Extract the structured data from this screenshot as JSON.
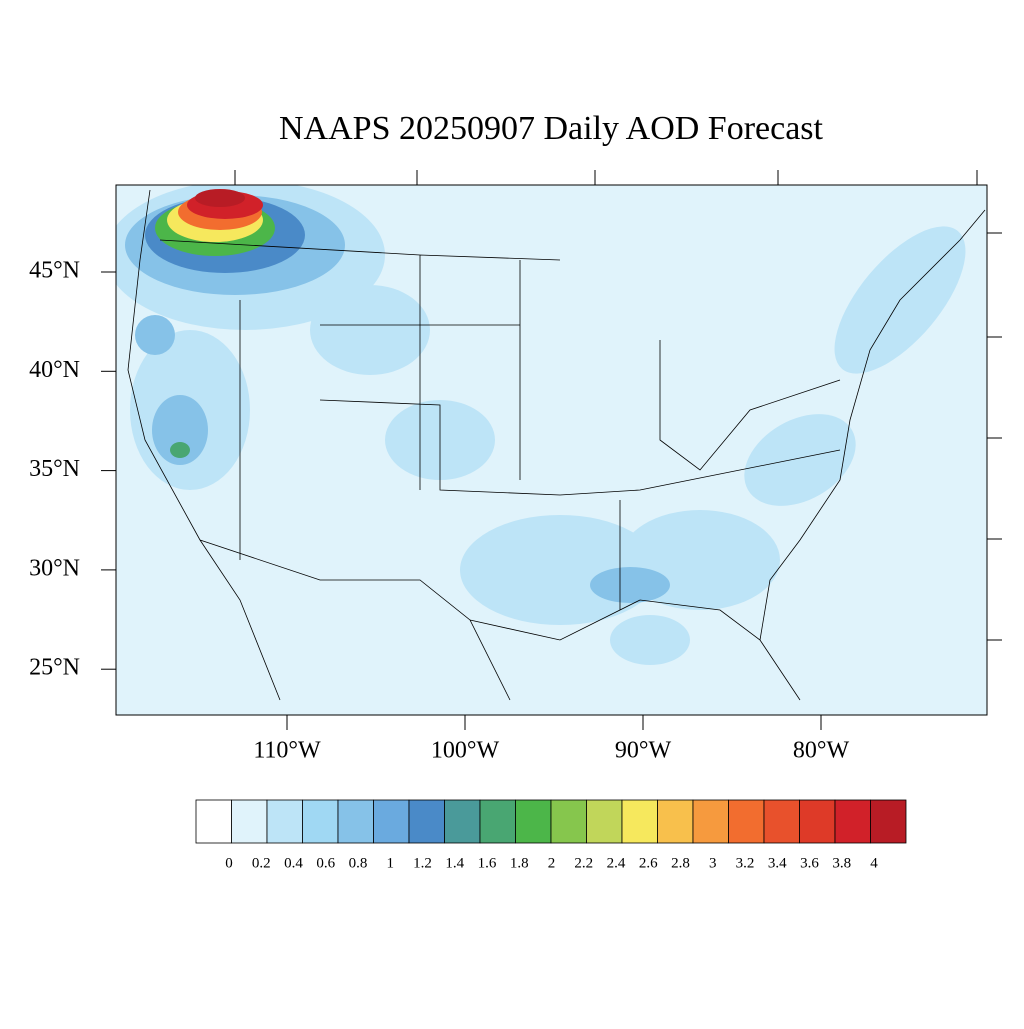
{
  "map": {
    "title": "NAAPS 20250907 Daily AOD Forecast",
    "lat_ticks": [
      {
        "value": 45,
        "label": "45°N"
      },
      {
        "value": 40,
        "label": "40°N"
      },
      {
        "value": 35,
        "label": "35°N"
      },
      {
        "value": 30,
        "label": "30°N"
      },
      {
        "value": 25,
        "label": "25°N"
      }
    ],
    "lon_ticks": [
      {
        "value": -110,
        "label": "110°W"
      },
      {
        "value": -100,
        "label": "100°W"
      },
      {
        "value": -90,
        "label": "90°W"
      },
      {
        "value": -80,
        "label": "80°W"
      }
    ],
    "colorbar": {
      "levels": [
        0,
        0.2,
        0.4,
        0.6,
        0.8,
        1,
        1.2,
        1.4,
        1.6,
        1.8,
        2,
        2.2,
        2.4,
        2.6,
        2.8,
        3,
        3.2,
        3.4,
        3.6,
        3.8,
        4
      ],
      "colors": [
        "#ffffff",
        "#e0f3fb",
        "#bde4f7",
        "#a0d8f3",
        "#86c2e8",
        "#6aaadf",
        "#4a8ac8",
        "#4a9a9a",
        "#49a672",
        "#4cb649",
        "#86c64d",
        "#c1d65a",
        "#f6e85d",
        "#f8c04c",
        "#f69a3e",
        "#f26d2f",
        "#e8512c",
        "#de3a28",
        "#d12129",
        "#b81c25",
        "#9e1a1f"
      ]
    }
  }
}
